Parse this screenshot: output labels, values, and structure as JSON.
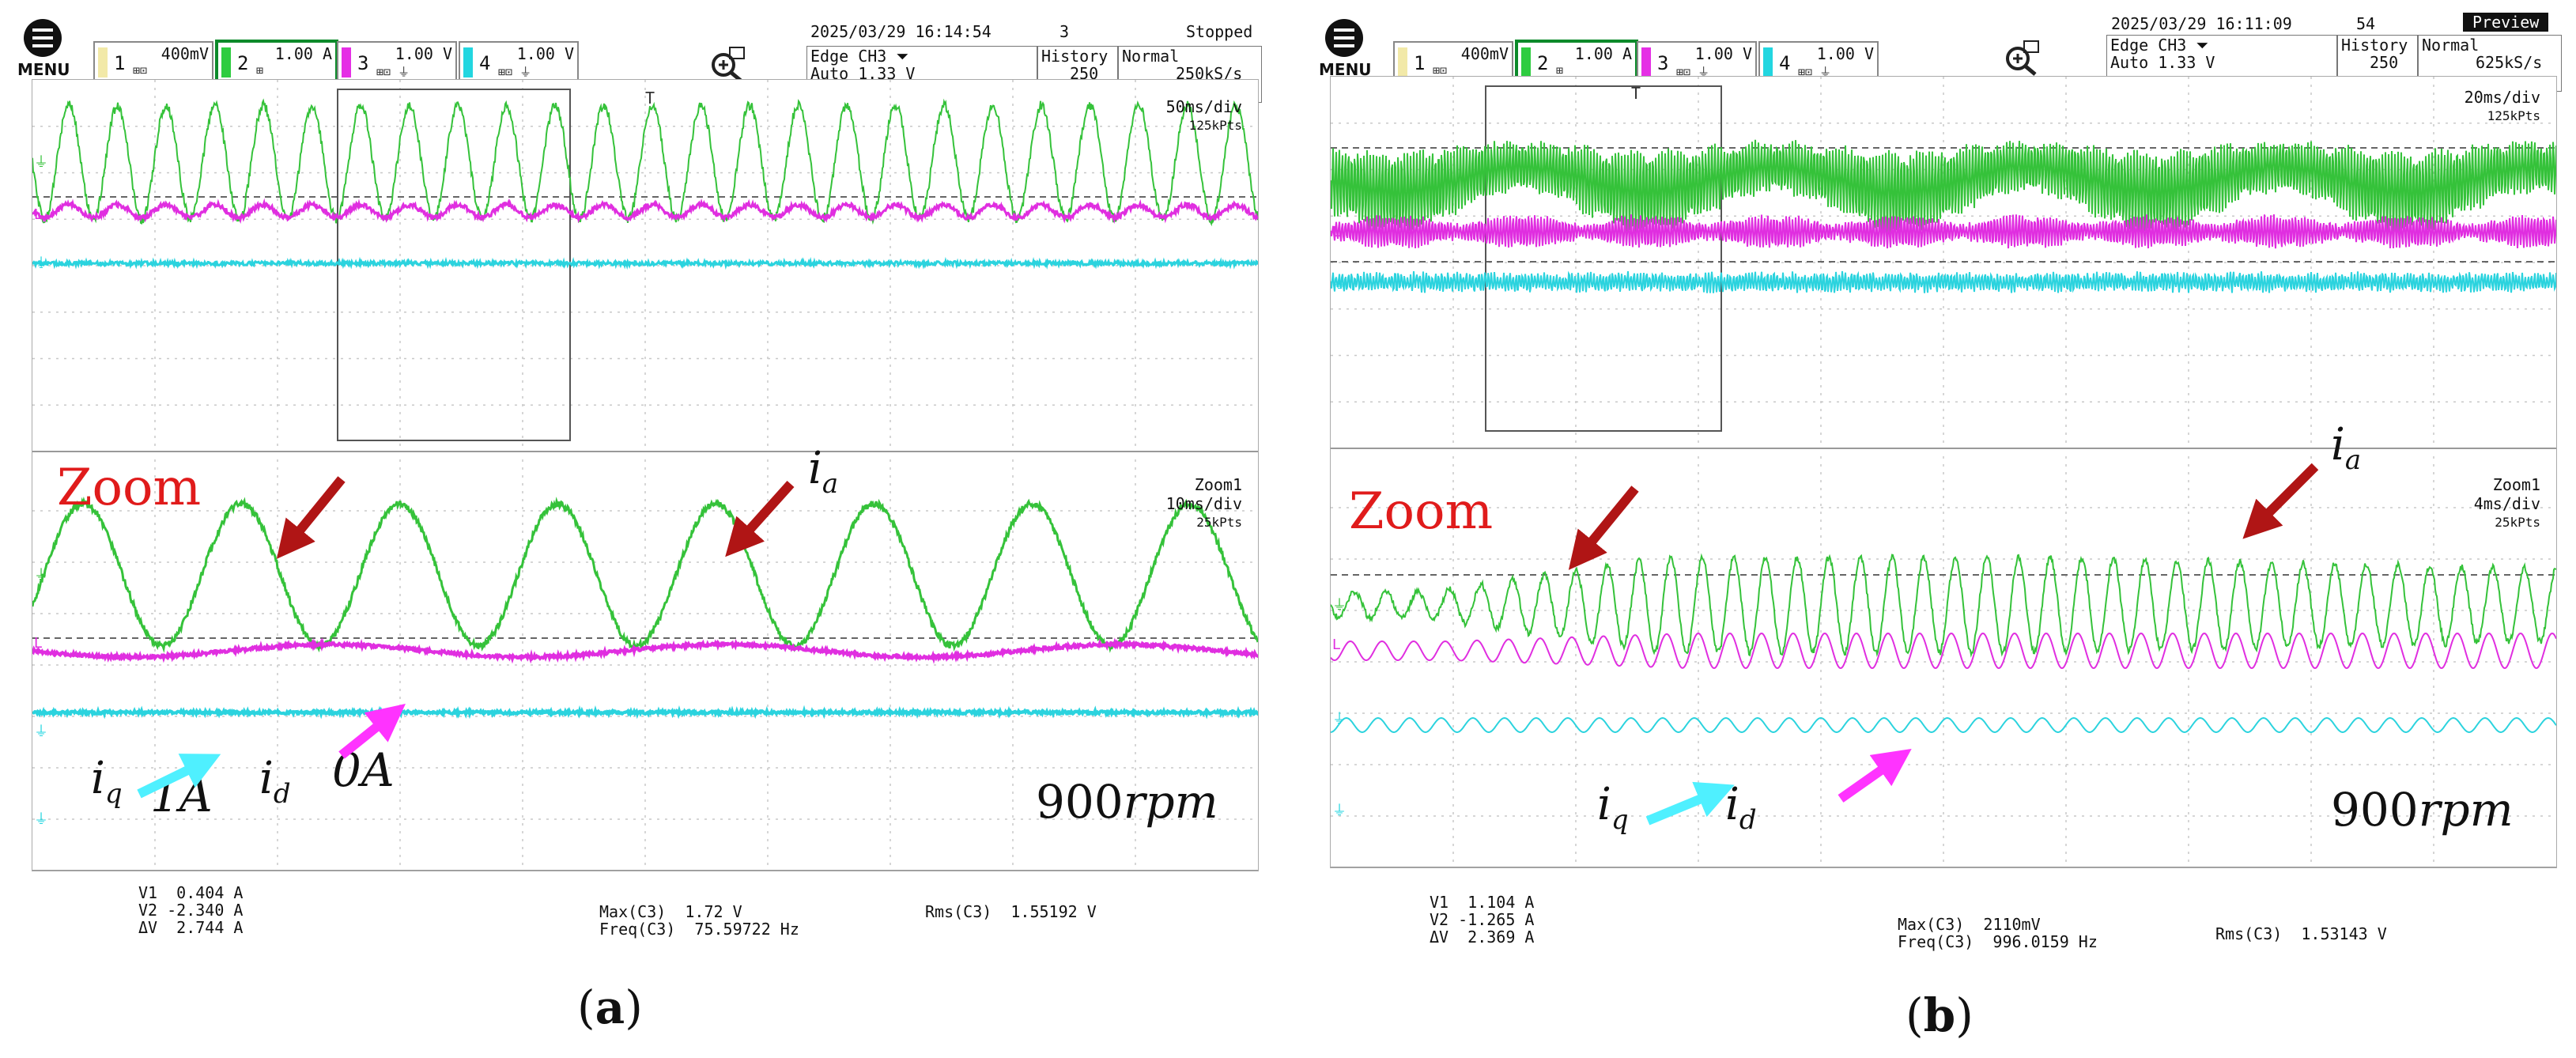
{
  "panels": [
    {
      "caption_letter": "a",
      "menu_label": "MENU",
      "channels": [
        {
          "num": "1",
          "scale": "400mV",
          "color": "#f2e9a8"
        },
        {
          "num": "2",
          "scale": "1.00 A",
          "color": "#2ecc40"
        },
        {
          "num": "3",
          "scale": "1.00 V",
          "color": "#e52ee5"
        },
        {
          "num": "4",
          "scale": "1.00 V",
          "color": "#22d6e0"
        }
      ],
      "datetime": "2025/03/29 16:14:54",
      "acq_count": "3",
      "status": "Stopped",
      "trigger_line1": "Edge CH3 ⏷",
      "trigger_line2": "Auto 1.33 V",
      "history_label": "History",
      "history_value": "250",
      "mode_label": "Normal",
      "sample_rate": "250kS/s",
      "main_timebase": "50ms/div",
      "main_points": "125kPts",
      "zoom_name": "Zoom1",
      "zoom_timebase": "10ms/div",
      "zoom_points": "25kPts",
      "zoom_annot": "Zoom",
      "label_ia": "i",
      "label_ia_sub": "a",
      "label_iq": "i",
      "label_iq_sub": "q",
      "label_id": "i",
      "label_id_sub": "d",
      "label_iq_val": "1A",
      "label_id_val": "0A",
      "speed_num": "900",
      "speed_unit": "rpm",
      "cursor_text": "V1  0.404 A\nV2 -2.340 A\nΔV  2.744 A",
      "max_text": "Max(C3)  1.72 V\nFreq(C3)  75.59722 Hz",
      "rms_text": "Rms(C3)  1.55192 V",
      "caption_open": "(",
      "caption_close": ")"
    },
    {
      "caption_letter": "b",
      "menu_label": "MENU",
      "channels": [
        {
          "num": "1",
          "scale": "400mV",
          "color": "#f2e9a8"
        },
        {
          "num": "2",
          "scale": "1.00 A",
          "color": "#2ecc40"
        },
        {
          "num": "3",
          "scale": "1.00 V",
          "color": "#e52ee5"
        },
        {
          "num": "4",
          "scale": "1.00 V",
          "color": "#22d6e0"
        }
      ],
      "datetime": "2025/03/29 16:11:09",
      "acq_count": "54",
      "status": "Preview",
      "trigger_line1": "Edge CH3 ⏷",
      "trigger_line2": "Auto 1.33 V",
      "history_label": "History",
      "history_value": "250",
      "mode_label": "Normal",
      "sample_rate": "625kS/s",
      "main_timebase": "20ms/div",
      "main_points": "125kPts",
      "zoom_name": "Zoom1",
      "zoom_timebase": "4ms/div",
      "zoom_points": "25kPts",
      "zoom_annot": "Zoom",
      "label_ia": "i",
      "label_ia_sub": "a",
      "label_iq": "i",
      "label_iq_sub": "q",
      "label_id": "i",
      "label_id_sub": "d",
      "speed_num": "900",
      "speed_unit": "rpm",
      "cursor_text": "V1  1.104 A\nV2 -1.265 A\nΔV  2.369 A",
      "max_text": "Max(C3)  2110mV\nFreq(C3)  996.0159 Hz",
      "rms_text": "Rms(C3)  1.53143 V",
      "caption_open": "(",
      "caption_close": ")"
    }
  ],
  "colors": {
    "ia": "#35c23a",
    "id": "#e02ee0",
    "iq": "#2bd3de",
    "arrow_dark": "#b01515",
    "arrow_magenta": "#ff33ff",
    "arrow_cyan": "#4ff0ff",
    "zoom_text": "#e01b1b"
  }
}
